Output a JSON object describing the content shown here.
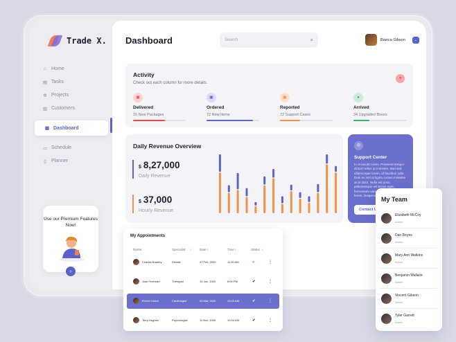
{
  "brand": {
    "name": "Trade X."
  },
  "sidebar": {
    "items": [
      {
        "label": "Home",
        "icon": "home-icon",
        "glyph": "⌂"
      },
      {
        "label": "Tasks",
        "icon": "tasks-icon",
        "glyph": "▤"
      },
      {
        "label": "Projects",
        "icon": "gear-icon",
        "glyph": "✲"
      },
      {
        "label": "Customers",
        "icon": "customers-icon",
        "glyph": "▥"
      },
      {
        "label": "Dashboard",
        "icon": "dashboard-icon",
        "glyph": "▦",
        "active": true
      },
      {
        "label": "Schedule",
        "icon": "calendar-icon",
        "glyph": "▭"
      },
      {
        "label": "Planner",
        "icon": "planner-icon",
        "glyph": "▯"
      }
    ],
    "promo": {
      "text": "Use our Premium Features Now!"
    }
  },
  "header": {
    "title": "Dashboard",
    "search_placeholder": "Search",
    "user_name": "Bianca Gibson"
  },
  "activity": {
    "title": "Activity",
    "subtitle": "Check out each column for more details.",
    "stats": [
      {
        "label": "Delivered",
        "value": "15 New Packages",
        "color": "#e8484d",
        "bg": "#fbd3d3",
        "progress": 0.6
      },
      {
        "label": "Ordered",
        "value": "72 New Items",
        "color": "#5b63c9",
        "bg": "#dcdcf6",
        "progress": 0.88
      },
      {
        "label": "Reported",
        "value": "72 Support Cases",
        "color": "#f2914a",
        "bg": "#fde0c7",
        "progress": 0.38
      },
      {
        "label": "Arrived",
        "value": "34 Upgraded Boxes",
        "color": "#35b36b",
        "bg": "#cdebd8",
        "progress": 0.3
      }
    ]
  },
  "revenue": {
    "title": "Daily Revenue Overview",
    "daily_value": "8,27,000",
    "daily_label": "Daily Revenue",
    "hourly_value": "37,000",
    "hourly_label": "Hourly Revenue",
    "currency": "$"
  },
  "chart_data": {
    "type": "bar",
    "stacked": true,
    "series": [
      {
        "values": [
          70,
          35,
          40,
          28,
          12,
          48,
          60,
          16,
          38,
          25,
          18,
          35,
          84,
          70
        ]
      },
      {
        "values": [
          30,
          12,
          28,
          14,
          6,
          14,
          15,
          12,
          10,
          10,
          10,
          14,
          16,
          10
        ]
      }
    ],
    "colors": [
      "#f2914a",
      "#5b63c9"
    ],
    "ylim": [
      0,
      100
    ],
    "grid": false
  },
  "support": {
    "title": "Support Center",
    "body": "In et iaculis lorem. Praesent tempor dictum tellus ut molestie. Sed sed ullamcorper lorem, id faucibus odio. Duis eu nisl ut ligula cursus molestie at at dolor. Nulla est justo, pellentesque vel lectus eget, fermentum varius dui. Morbi in varius lorem. Suspendisse in lorem.",
    "button": "Contact Us"
  },
  "appointments": {
    "title": "My Appointments",
    "columns": [
      "Name",
      "Specialist",
      "Date",
      "Time",
      "Status"
    ],
    "rows": [
      {
        "name": "Charles Bradley",
        "specialist": "Dentist",
        "date": "27 Feb, 2020",
        "time": "11:00 AM",
        "status": "pending",
        "glyph": "●"
      },
      {
        "name": "Jose Freeman",
        "specialist": "Therapist",
        "date": "15 Jan, 2020",
        "time": "8:00 PM",
        "status": "done",
        "glyph": "✔"
      },
      {
        "name": "Emma Carrol",
        "specialist": "Cardiologist",
        "date": "20 Mar, 2020",
        "time": "12:00 AM",
        "status": "done",
        "glyph": "✔",
        "selected": true
      },
      {
        "name": "Terry Hughes",
        "specialist": "Psychologist",
        "date": "11 Nov, 2020",
        "time": "10:00 AM",
        "status": "done",
        "glyph": "✔"
      }
    ]
  },
  "team": {
    "title": "My Team",
    "members": [
      {
        "name": "Elizabeth McCoy",
        "role": "Admin"
      },
      {
        "name": "Dan Reyes",
        "role": "Admin"
      },
      {
        "name": "Mary Ann Watkins",
        "role": "Admin"
      },
      {
        "name": "Benjamin Wallace",
        "role": "Admin"
      },
      {
        "name": "Vincent Gibson",
        "role": "Admin"
      },
      {
        "name": "Tyler Garrett",
        "role": "Admin"
      }
    ]
  }
}
